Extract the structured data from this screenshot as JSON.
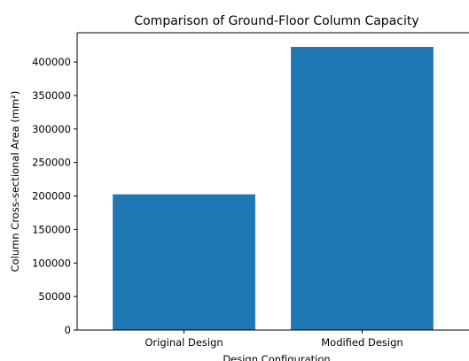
{
  "chart_data": {
    "type": "bar",
    "title": "Comparison of Ground-Floor Column Capacity",
    "xlabel": "Design Configuration",
    "ylabel": "Column Cross-sectional Area (mm²)",
    "categories": [
      "Original Design",
      "Modified Design"
    ],
    "values": [
      202500,
      422500
    ],
    "ylim": [
      0,
      443625
    ],
    "yticks": [
      0,
      50000,
      100000,
      150000,
      200000,
      250000,
      300000,
      350000,
      400000
    ],
    "bar_color": "#1f77b4",
    "grid": false
  }
}
